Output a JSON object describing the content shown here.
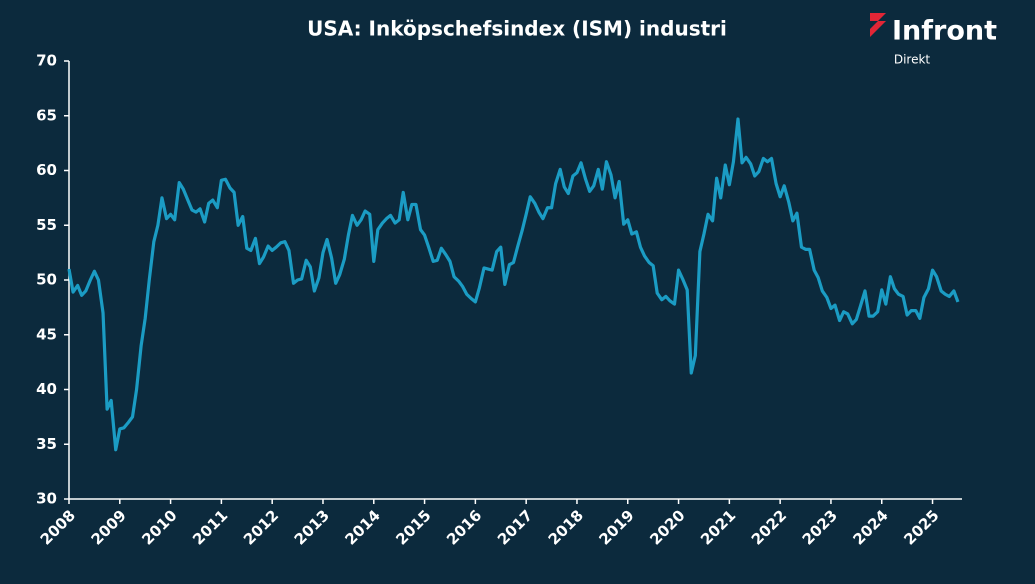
{
  "chart_data": {
    "type": "line",
    "title": "USA: Inköpschefsindex (ISM) industri",
    "logo": {
      "name": "Infront",
      "sub": "Direkt"
    },
    "xlim": [
      2008,
      2025.58
    ],
    "xticks": [
      2008,
      2009,
      2010,
      2011,
      2012,
      2013,
      2014,
      2015,
      2016,
      2017,
      2018,
      2019,
      2020,
      2021,
      2022,
      2023,
      2024,
      2025
    ],
    "ylim": [
      30,
      70
    ],
    "yticks": [
      30,
      35,
      40,
      45,
      50,
      55,
      60,
      65,
      70
    ],
    "grid": false,
    "series": [
      {
        "name": "ISM",
        "color": "#1b9cc4",
        "x": [
          2008.0,
          2008.08,
          2008.17,
          2008.25,
          2008.33,
          2008.42,
          2008.5,
          2008.58,
          2008.67,
          2008.75,
          2008.83,
          2008.92,
          2009.0,
          2009.08,
          2009.17,
          2009.25,
          2009.33,
          2009.42,
          2009.5,
          2009.58,
          2009.67,
          2009.75,
          2009.83,
          2009.92,
          2010.0,
          2010.08,
          2010.17,
          2010.25,
          2010.33,
          2010.42,
          2010.5,
          2010.58,
          2010.67,
          2010.75,
          2010.83,
          2010.92,
          2011.0,
          2011.08,
          2011.17,
          2011.25,
          2011.33,
          2011.42,
          2011.5,
          2011.58,
          2011.67,
          2011.75,
          2011.83,
          2011.92,
          2012.0,
          2012.08,
          2012.17,
          2012.25,
          2012.33,
          2012.42,
          2012.5,
          2012.58,
          2012.67,
          2012.75,
          2012.83,
          2012.92,
          2013.0,
          2013.08,
          2013.17,
          2013.25,
          2013.33,
          2013.42,
          2013.5,
          2013.58,
          2013.67,
          2013.75,
          2013.83,
          2013.92,
          2014.0,
          2014.08,
          2014.17,
          2014.25,
          2014.33,
          2014.42,
          2014.5,
          2014.58,
          2014.67,
          2014.75,
          2014.83,
          2014.92,
          2015.0,
          2015.08,
          2015.17,
          2015.25,
          2015.33,
          2015.42,
          2015.5,
          2015.58,
          2015.67,
          2015.75,
          2015.83,
          2015.92,
          2016.0,
          2016.08,
          2016.17,
          2016.25,
          2016.33,
          2016.42,
          2016.5,
          2016.58,
          2016.67,
          2016.75,
          2016.83,
          2016.92,
          2017.0,
          2017.08,
          2017.17,
          2017.25,
          2017.33,
          2017.42,
          2017.5,
          2017.58,
          2017.67,
          2017.75,
          2017.83,
          2017.92,
          2018.0,
          2018.08,
          2018.17,
          2018.25,
          2018.33,
          2018.42,
          2018.5,
          2018.58,
          2018.67,
          2018.75,
          2018.83,
          2018.92,
          2019.0,
          2019.08,
          2019.17,
          2019.25,
          2019.33,
          2019.42,
          2019.5,
          2019.58,
          2019.67,
          2019.75,
          2019.83,
          2019.92,
          2020.0,
          2020.08,
          2020.17,
          2020.25,
          2020.33,
          2020.42,
          2020.5,
          2020.58,
          2020.67,
          2020.75,
          2020.83,
          2020.92,
          2021.0,
          2021.08,
          2021.17,
          2021.25,
          2021.33,
          2021.42,
          2021.5,
          2021.58,
          2021.67,
          2021.75,
          2021.83,
          2021.92,
          2022.0,
          2022.08,
          2022.17,
          2022.25,
          2022.33,
          2022.42,
          2022.5,
          2022.58,
          2022.67,
          2022.75,
          2022.83,
          2022.92,
          2023.0,
          2023.08,
          2023.17,
          2023.25,
          2023.33,
          2023.42,
          2023.5,
          2023.58,
          2023.67,
          2023.75,
          2023.83,
          2023.92,
          2024.0,
          2024.08,
          2024.17,
          2024.25,
          2024.33,
          2024.42,
          2024.5,
          2024.58,
          2024.67,
          2024.75,
          2024.83,
          2024.92,
          2025.0,
          2025.08,
          2025.17,
          2025.25,
          2025.33,
          2025.42,
          2025.5
        ],
        "values": [
          51.0,
          48.9,
          49.5,
          48.6,
          49.0,
          50.0,
          50.8,
          50.0,
          47.0,
          38.2,
          39.0,
          34.5,
          36.4,
          36.5,
          37.0,
          37.5,
          40.0,
          44.0,
          46.5,
          50.0,
          53.5,
          55.0,
          57.5,
          55.6,
          56.0,
          55.5,
          58.9,
          58.3,
          57.4,
          56.4,
          56.2,
          56.5,
          55.3,
          57.0,
          57.3,
          56.6,
          59.1,
          59.2,
          58.4,
          58.0,
          55.0,
          55.8,
          52.9,
          52.7,
          53.8,
          51.5,
          52.1,
          53.1,
          52.7,
          53.0,
          53.4,
          53.5,
          52.7,
          49.7,
          50.0,
          50.1,
          51.8,
          51.2,
          49.0,
          50.2,
          52.5,
          53.7,
          52.0,
          49.7,
          50.5,
          51.9,
          54.1,
          55.9,
          55.0,
          55.5,
          56.3,
          56.0,
          51.7,
          54.6,
          55.2,
          55.6,
          55.9,
          55.2,
          55.5,
          58.0,
          55.5,
          56.9,
          56.9,
          54.6,
          54.1,
          53.0,
          51.7,
          51.8,
          52.9,
          52.3,
          51.7,
          50.3,
          49.9,
          49.4,
          48.7,
          48.3,
          48.0,
          49.3,
          51.1,
          51.0,
          50.9,
          52.6,
          53.0,
          49.6,
          51.4,
          51.6,
          53.0,
          54.5,
          56.0,
          57.6,
          57.0,
          56.2,
          55.6,
          56.6,
          56.6,
          58.8,
          60.1,
          58.5,
          57.9,
          59.5,
          59.8,
          60.7,
          59.2,
          58.1,
          58.6,
          60.1,
          58.3,
          60.8,
          59.6,
          57.5,
          59.0,
          55.1,
          55.5,
          54.2,
          54.4,
          53.0,
          52.2,
          51.6,
          51.3,
          48.8,
          48.2,
          48.5,
          48.1,
          47.8,
          50.9,
          50.1,
          49.1,
          41.5,
          43.1,
          52.6,
          54.2,
          56.0,
          55.4,
          59.3,
          57.5,
          60.5,
          58.7,
          60.8,
          64.7,
          60.7,
          61.2,
          60.6,
          59.5,
          59.9,
          61.1,
          60.8,
          61.1,
          58.8,
          57.6,
          58.6,
          57.1,
          55.4,
          56.1,
          53.0,
          52.8,
          52.8,
          50.9,
          50.2,
          49.0,
          48.4,
          47.4,
          47.7,
          46.3,
          47.1,
          46.9,
          46.0,
          46.4,
          47.6,
          49.0,
          46.7,
          46.7,
          47.1,
          49.1,
          47.8,
          50.3,
          49.2,
          48.7,
          48.5,
          46.8,
          47.2,
          47.2,
          46.5,
          48.4,
          49.2,
          50.9,
          50.3,
          49.0,
          48.7,
          48.5,
          49.0,
          48.0
        ]
      }
    ]
  }
}
